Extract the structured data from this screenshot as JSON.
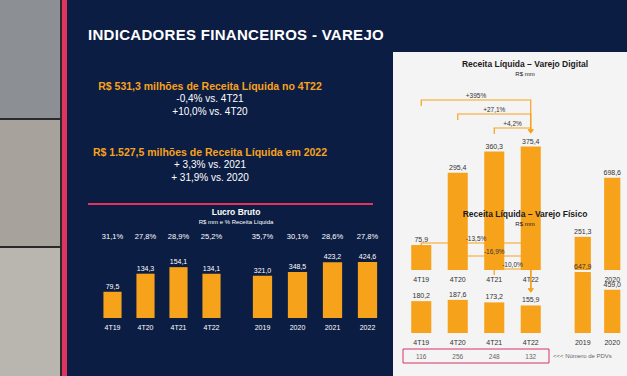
{
  "slide": {
    "title": "INDICADORES FINANCEIROS - VAREJO",
    "highlights": [
      {
        "headline": "R$ 531,3 milhões de Receita Líquida no 4T22",
        "lines": [
          "-0,4% vs. 4T21",
          "+10,0% vs. 4T20"
        ]
      },
      {
        "headline": "R$ 1.527,5 milhões de Receita Líquida em 2022",
        "lines": [
          "+ 3,3% vs. 2021",
          "+ 31,9% vs. 2020"
        ]
      }
    ]
  },
  "chart_data": [
    {
      "type": "bar",
      "title": "Lucro Bruto",
      "subtitle": "R$ mm e % Receita Líquida",
      "categories": [
        "4T19",
        "4T20",
        "4T21",
        "4T22"
      ],
      "values": [
        79.5,
        134.3,
        154.1,
        134.1
      ],
      "value_labels": [
        "79,5",
        "134,3",
        "154,1",
        "134,1"
      ],
      "percent_labels": {
        "values": [
          31.1,
          27.8,
          28.9,
          25.2
        ],
        "value_labels": [
          "31,1%",
          "27,8%",
          "28,9%",
          "25,2%"
        ]
      },
      "color": "#f7a21b",
      "ylim": [
        0,
        200
      ],
      "grid": false,
      "data_labels": true,
      "tick_labels": "x"
    },
    {
      "type": "bar",
      "categories": [
        "2019",
        "2020",
        "2021",
        "2022"
      ],
      "values": [
        321.0,
        348.5,
        423.2,
        424.6
      ],
      "value_labels": [
        "321,0",
        "348,5",
        "423,2",
        "424,6"
      ],
      "percent_labels": {
        "values": [
          35.7,
          30.1,
          28.6,
          27.8
        ],
        "value_labels": [
          "35,7%",
          "30,1%",
          "28,6%",
          "27,8%"
        ]
      },
      "color": "#f7a21b",
      "ylim": [
        0,
        500
      ],
      "grid": false,
      "data_labels": true,
      "tick_labels": "x"
    },
    {
      "type": "bar",
      "title": "Receita Líquida – Varejo Digital",
      "subtitle": "R$ mm",
      "categories": [
        "4T19",
        "4T20",
        "4T21",
        "4T22"
      ],
      "values": [
        75.9,
        295.4,
        360.3,
        375.4
      ],
      "value_labels": [
        "75,9",
        "295,4",
        "360,3",
        "375,4"
      ],
      "annotations": [
        {
          "text": "+395%",
          "from": "4T19",
          "to": "4T22"
        },
        {
          "text": "+27,1%",
          "from": "4T20",
          "to": "4T22"
        },
        {
          "text": "+4,2%",
          "from": "4T21",
          "to": "4T22"
        }
      ],
      "color": "#f7a21b",
      "ylim": [
        0,
        450
      ],
      "grid": false,
      "data_labels": true,
      "tick_labels": "x"
    },
    {
      "type": "bar",
      "categories": [
        "2019",
        "2020"
      ],
      "values": [
        251.3,
        698.6
      ],
      "value_labels": [
        "251,3",
        "698,6"
      ],
      "color": "#f7a21b",
      "ylim": [
        0,
        1000
      ],
      "grid": false,
      "data_labels": true,
      "tick_labels": "x"
    },
    {
      "type": "bar",
      "title": "Receita Líquida – Varejo Físico",
      "subtitle": "R$ mm",
      "categories": [
        "4T19",
        "4T20",
        "4T21",
        "4T22"
      ],
      "values": [
        180.2,
        187.6,
        173.2,
        155.9
      ],
      "value_labels": [
        "180,2",
        "187,6",
        "173,2",
        "155,9"
      ],
      "annotations": [
        {
          "text": "-13,5%",
          "from": "4T19",
          "to": "4T22"
        },
        {
          "text": "-16,9%",
          "from": "4T20",
          "to": "4T22"
        },
        {
          "text": "-10,0%",
          "from": "4T21",
          "to": "4T22"
        }
      ],
      "pdv_counts": {
        "label": "<<< Número de PDVs",
        "values": [
          116,
          256,
          248,
          132
        ]
      },
      "color": "#f7a21b",
      "ylim": [
        0,
        300
      ],
      "grid": false,
      "data_labels": true,
      "tick_labels": "x"
    },
    {
      "type": "bar",
      "categories": [
        "2019",
        "2020"
      ],
      "values": [
        647.9,
        459.0
      ],
      "value_labels": [
        "647,9",
        "459,0"
      ],
      "color": "#f7a21b",
      "ylim": [
        0,
        700
      ],
      "grid": false,
      "data_labels": true,
      "tick_labels": "x"
    }
  ]
}
